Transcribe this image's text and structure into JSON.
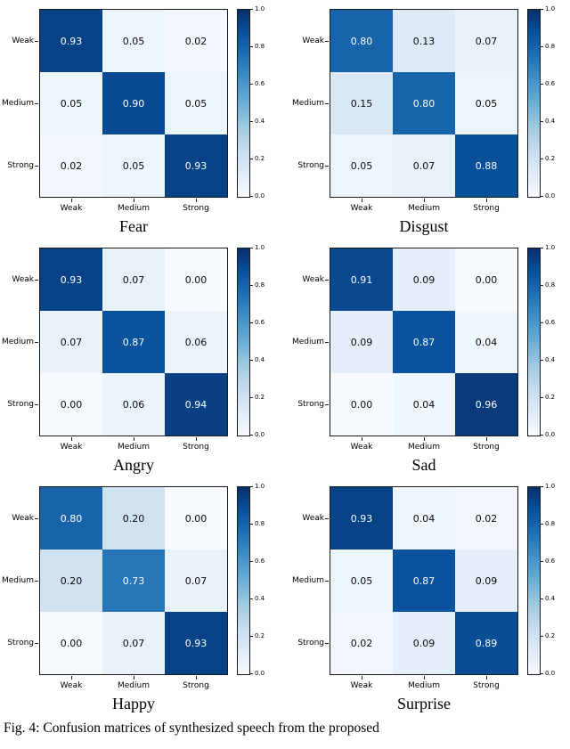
{
  "caption": "Fig. 4: Confusion matrices of synthesized speech from the proposed",
  "colors": {
    "colormap_stops": [
      "#f7fbff",
      "#deebf7",
      "#c6dbef",
      "#9ecae1",
      "#6baed6",
      "#4292c6",
      "#2171b5",
      "#08519c",
      "#08306b"
    ],
    "cell_text_light": "#ffffff",
    "cell_text_dark": "#0a0a0a"
  },
  "colorbar": {
    "tick_labels": [
      "1.0",
      "0.8",
      "0.6",
      "0.4",
      "0.2",
      "0.0"
    ]
  },
  "chart_data": [
    {
      "type": "heatmap",
      "title": "Fear",
      "x_labels": [
        "Weak",
        "Medium",
        "Strong"
      ],
      "y_labels": [
        "Weak",
        "Medium",
        "Strong"
      ],
      "values": [
        [
          0.93,
          0.05,
          0.02
        ],
        [
          0.05,
          0.9,
          0.05
        ],
        [
          0.02,
          0.05,
          0.93
        ]
      ],
      "colormap": "Blues",
      "vmin": 0.0,
      "vmax": 1.0
    },
    {
      "type": "heatmap",
      "title": "Disgust",
      "x_labels": [
        "Weak",
        "Medium",
        "Strong"
      ],
      "y_labels": [
        "Weak",
        "Medium",
        "Strong"
      ],
      "values": [
        [
          0.8,
          0.13,
          0.07
        ],
        [
          0.15,
          0.8,
          0.05
        ],
        [
          0.05,
          0.07,
          0.88
        ]
      ],
      "colormap": "Blues",
      "vmin": 0.0,
      "vmax": 1.0
    },
    {
      "type": "heatmap",
      "title": "Angry",
      "x_labels": [
        "Weak",
        "Medium",
        "Strong"
      ],
      "y_labels": [
        "Weak",
        "Medium",
        "Strong"
      ],
      "values": [
        [
          0.93,
          0.07,
          0.0
        ],
        [
          0.07,
          0.87,
          0.06
        ],
        [
          0.0,
          0.06,
          0.94
        ]
      ],
      "colormap": "Blues",
      "vmin": 0.0,
      "vmax": 1.0
    },
    {
      "type": "heatmap",
      "title": "Sad",
      "x_labels": [
        "Weak",
        "Medium",
        "Strong"
      ],
      "y_labels": [
        "Weak",
        "Medium",
        "Strong"
      ],
      "values": [
        [
          0.91,
          0.09,
          0.0
        ],
        [
          0.09,
          0.87,
          0.04
        ],
        [
          0.0,
          0.04,
          0.96
        ]
      ],
      "colormap": "Blues",
      "vmin": 0.0,
      "vmax": 1.0
    },
    {
      "type": "heatmap",
      "title": "Happy",
      "x_labels": [
        "Weak",
        "Medium",
        "Strong"
      ],
      "y_labels": [
        "Weak",
        "Medium",
        "Strong"
      ],
      "values": [
        [
          0.8,
          0.2,
          0.0
        ],
        [
          0.2,
          0.73,
          0.07
        ],
        [
          0.0,
          0.07,
          0.93
        ]
      ],
      "colormap": "Blues",
      "vmin": 0.0,
      "vmax": 1.0
    },
    {
      "type": "heatmap",
      "title": "Surprise",
      "x_labels": [
        "Weak",
        "Medium",
        "Strong"
      ],
      "y_labels": [
        "Weak",
        "Medium",
        "Strong"
      ],
      "values": [
        [
          0.93,
          0.04,
          0.02
        ],
        [
          0.05,
          0.87,
          0.09
        ],
        [
          0.02,
          0.09,
          0.89
        ]
      ],
      "colormap": "Blues",
      "vmin": 0.0,
      "vmax": 1.0
    }
  ]
}
